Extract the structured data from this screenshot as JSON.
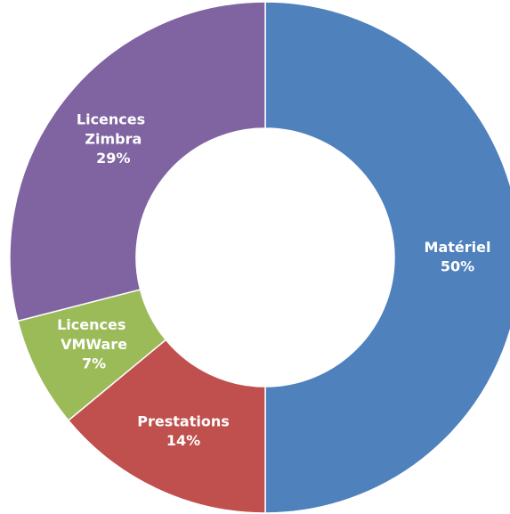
{
  "chart_data": {
    "type": "donut",
    "categories": [
      "Matériel",
      "Prestations",
      "Licences VMWare",
      "Licences Zimbra"
    ],
    "values": [
      50,
      14,
      7,
      29
    ],
    "value_labels": [
      "50%",
      "14%",
      "7%",
      "29%"
    ],
    "colors": [
      "#4f81bd",
      "#c0504d",
      "#9bbb59",
      "#8064a2"
    ]
  }
}
